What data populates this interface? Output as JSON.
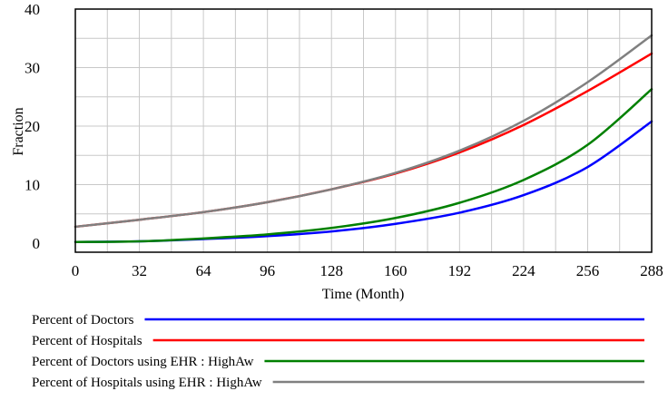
{
  "chart_data": {
    "type": "line",
    "title": "",
    "xlabel": "Time (Month)",
    "ylabel": "Fraction",
    "xlim": [
      0,
      288
    ],
    "ylim": [
      0,
      40
    ],
    "x_ticks": [
      "0",
      "32",
      "64",
      "96",
      "128",
      "160",
      "192",
      "224",
      "256",
      "288"
    ],
    "y_ticks": [
      "0",
      "10",
      "20",
      "30",
      "40"
    ],
    "grid": true,
    "legend_position": "bottom",
    "x": [
      0,
      32,
      64,
      96,
      128,
      160,
      192,
      224,
      256,
      288
    ],
    "series": [
      {
        "name": "Percent of Doctors",
        "color": "#0000ff",
        "values": [
          0.2,
          0.3,
          0.7,
          1.2,
          2.0,
          3.3,
          5.2,
          8.2,
          13.0,
          20.8
        ]
      },
      {
        "name": "Percent of Hospitals",
        "color": "#ff0000",
        "values": [
          2.8,
          4.0,
          5.3,
          7.0,
          9.2,
          11.9,
          15.5,
          20.2,
          26.0,
          32.4
        ]
      },
      {
        "name": "Percent of Doctors using EHR : HighAw",
        "color": "#008000",
        "values": [
          0.2,
          0.3,
          0.8,
          1.5,
          2.6,
          4.3,
          6.9,
          10.8,
          16.8,
          26.3
        ]
      },
      {
        "name": "Percent of Hospitals using EHR : HighAw",
        "color": "#808080",
        "values": [
          2.8,
          4.0,
          5.3,
          7.0,
          9.2,
          12.0,
          15.8,
          20.9,
          27.5,
          35.5
        ]
      }
    ]
  }
}
